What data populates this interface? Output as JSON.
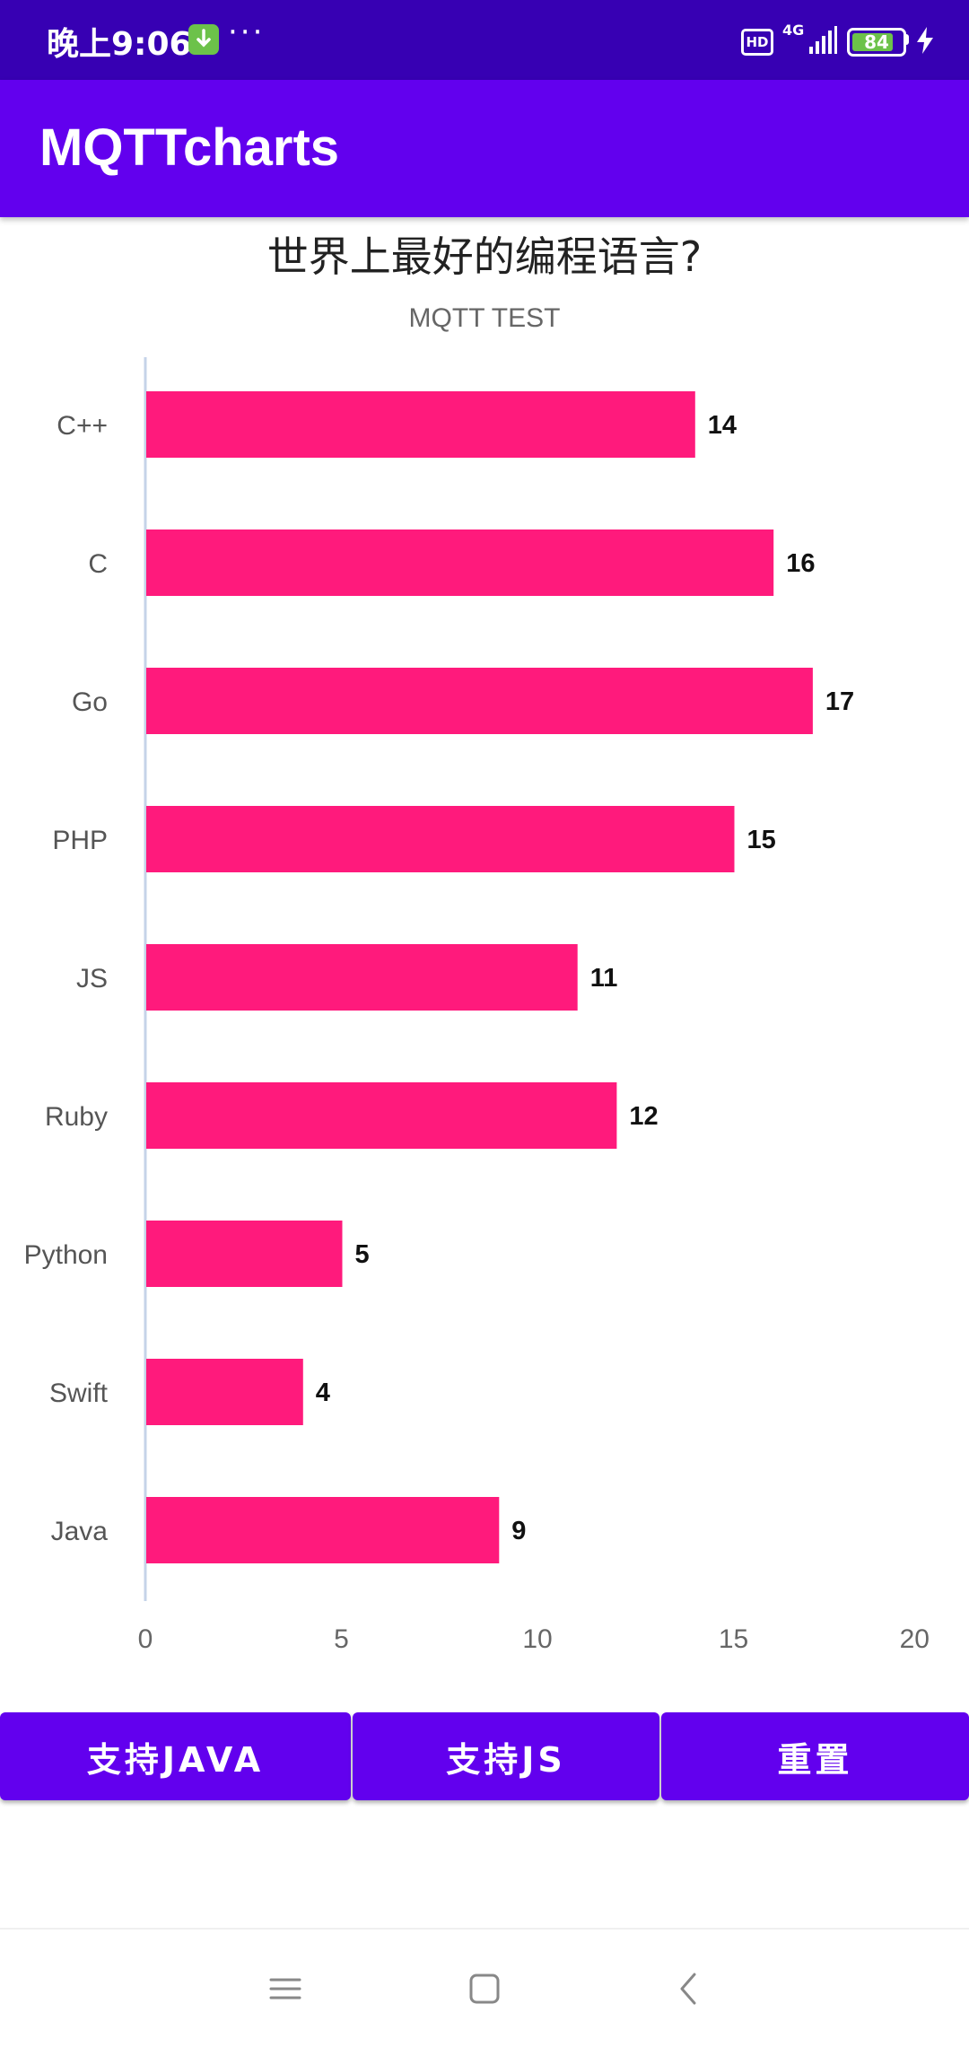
{
  "status_bar": {
    "time": "晚上9:06",
    "more": "···",
    "hd": "HD",
    "network": "4G",
    "battery_level": "84",
    "battery_fraction": 0.84,
    "download_icon": "download-arrow-icon",
    "charging_icon": "lightning-icon"
  },
  "app_bar": {
    "title": "MQTTcharts"
  },
  "chart_data": {
    "type": "bar",
    "orientation": "horizontal",
    "title": "世界上最好的编程语言?",
    "subtitle": "MQTT TEST",
    "categories": [
      "C++",
      "C",
      "Go",
      "PHP",
      "JS",
      "Ruby",
      "Python",
      "Swift",
      "Java"
    ],
    "values": [
      14,
      16,
      17,
      15,
      11,
      12,
      5,
      4,
      9
    ],
    "xlim": [
      0,
      20
    ],
    "xticks": [
      0,
      5,
      10,
      15,
      20
    ],
    "bar_color": "#ff1a7c",
    "data_labels": true,
    "grid": false,
    "legend": "none"
  },
  "buttons": {
    "support_java": "支持JAVA",
    "support_js": "支持JS",
    "reset": "重置"
  },
  "nav_bar": {
    "menu_icon": "menu-icon",
    "home_icon": "home-icon",
    "back_icon": "back-icon"
  },
  "colors": {
    "status_bar": "#3700b3",
    "primary": "#6200ee",
    "bar": "#ff1a7c",
    "axis_line": "#c5d3e8",
    "battery_fill": "#6cc24a"
  }
}
